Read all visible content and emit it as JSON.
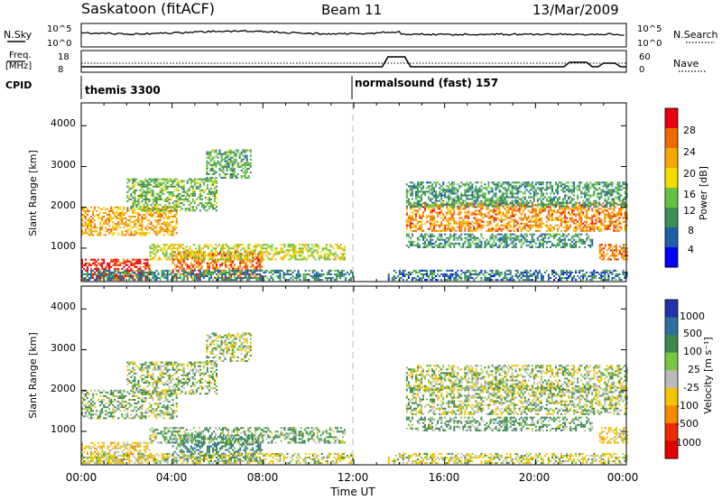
{
  "header": {
    "station": "Saskatoon (fitACF)",
    "beam": "Beam 11",
    "date": "13/Mar/2009"
  },
  "top_panel": {
    "left_label": "N.Sky",
    "left_ticks": [
      "10^5",
      "10^0"
    ],
    "right_label": "N.Search",
    "right_ticks": [
      "10^5",
      "10^0"
    ]
  },
  "freq_panel": {
    "left_label_1": "Freq.",
    "left_label_2": "[MHz]",
    "left_ticks": [
      "18",
      "8"
    ],
    "right_label": "Nave",
    "right_ticks": [
      "60",
      "0"
    ]
  },
  "cpid": {
    "label": "CPID",
    "modes": [
      "themis 3300",
      "normalsound (fast) 157"
    ]
  },
  "x_axis": {
    "label": "Time UT",
    "ticks": [
      "00:00",
      "04:00",
      "08:00",
      "12:00",
      "16:00",
      "20:00",
      "00:00"
    ]
  },
  "power_panel": {
    "ylabel": "Slant Range [km]",
    "yticks": [
      "4000",
      "3000",
      "2000",
      "1000"
    ],
    "colorbar_label": "Power [dB]",
    "colorbar_ticks": [
      "28",
      "24",
      "20",
      "16",
      "12",
      "8",
      "4"
    ]
  },
  "velocity_panel": {
    "ylabel": "Slant Range [km]",
    "yticks": [
      "4000",
      "3000",
      "2000",
      "1000"
    ],
    "colorbar_label": "Velocity [m s⁻¹]",
    "colorbar_ticks": [
      "1000",
      "500",
      "100",
      "25",
      "-25",
      "-100",
      "-500",
      "-1000"
    ]
  },
  "chart_data": {
    "type": "heatmap",
    "title": "Saskatoon (fitACF)",
    "x": [
      "00:00",
      "04:00",
      "08:00",
      "12:00",
      "16:00",
      "20:00",
      "00:00"
    ],
    "xlabel": "Time UT",
    "ylabel": "Slant Range [km]",
    "ylim": [
      180,
      4560
    ],
    "power_scale_db": [
      0,
      32
    ],
    "velocity_scale": [
      -1000,
      1000
    ],
    "power_colors": [
      "#0000ff",
      "#1e5fa8",
      "#3d8f56",
      "#66c341",
      "#f2dc00",
      "#f5a800",
      "#f06a00",
      "#e8000a"
    ],
    "velocity_colors": [
      "#2233aa",
      "#2f6fa0",
      "#3b8a4c",
      "#77c642",
      "#bbbbbb",
      "#f5c400",
      "#f58a00",
      "#ee2a00",
      "#e30000"
    ],
    "scatter_regions": [
      {
        "t0": 0.0,
        "t1": 4.2,
        "r0": 1300,
        "r1": 2000,
        "power": 22,
        "velocity": 20
      },
      {
        "t0": 2.0,
        "t1": 6.0,
        "r0": 1900,
        "r1": 2700,
        "power": 13,
        "velocity": 10
      },
      {
        "t0": 0.0,
        "t1": 3.0,
        "r0": 200,
        "r1": 700,
        "power": 30,
        "velocity": -60
      },
      {
        "t0": 4.0,
        "t1": 8.0,
        "r0": 250,
        "r1": 900,
        "power": 26,
        "velocity": 80
      },
      {
        "t0": 3.0,
        "t1": 11.6,
        "r0": 700,
        "r1": 1100,
        "power": 17,
        "velocity": 30
      },
      {
        "t0": 5.5,
        "t1": 7.5,
        "r0": 2700,
        "r1": 3400,
        "power": 12,
        "velocity": 0
      },
      {
        "t0": 0.0,
        "t1": 12.0,
        "r0": 200,
        "r1": 450,
        "power": 9,
        "velocity": -20
      },
      {
        "t0": 14.3,
        "t1": 24.0,
        "r0": 1400,
        "r1": 2100,
        "power": 24,
        "velocity": 5
      },
      {
        "t0": 14.3,
        "t1": 22.5,
        "r0": 1000,
        "r1": 1350,
        "power": 10,
        "velocity": 40
      },
      {
        "t0": 14.3,
        "t1": 24.0,
        "r0": 2000,
        "r1": 2600,
        "power": 11,
        "velocity": 0
      },
      {
        "t0": 22.8,
        "t1": 24.0,
        "r0": 700,
        "r1": 1100,
        "power": 24,
        "velocity": -50
      },
      {
        "t0": 13.5,
        "t1": 24.0,
        "r0": 200,
        "r1": 450,
        "power": 8,
        "velocity": -20
      }
    ]
  }
}
